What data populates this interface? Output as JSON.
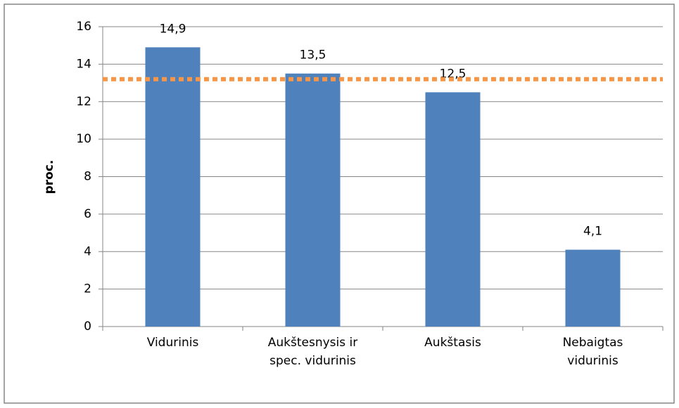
{
  "chart_data": {
    "type": "bar",
    "ylabel": "proc.",
    "categories": [
      "Vidurinis",
      "Aukštesnysis ir\nspec. vidurinis",
      "Aukštasis",
      "Nebaigtas\nvidurinis"
    ],
    "values": [
      14.9,
      13.5,
      12.5,
      4.1
    ],
    "value_labels": [
      "14,9",
      "13,5",
      "12,5",
      "4,1"
    ],
    "color": "#4f81bd",
    "reference_line": {
      "value": 13.2,
      "color": "#f79646"
    },
    "ylim": [
      0,
      16
    ],
    "yticks": [
      0,
      2,
      4,
      6,
      8,
      10,
      12,
      14,
      16
    ],
    "grid": true
  }
}
